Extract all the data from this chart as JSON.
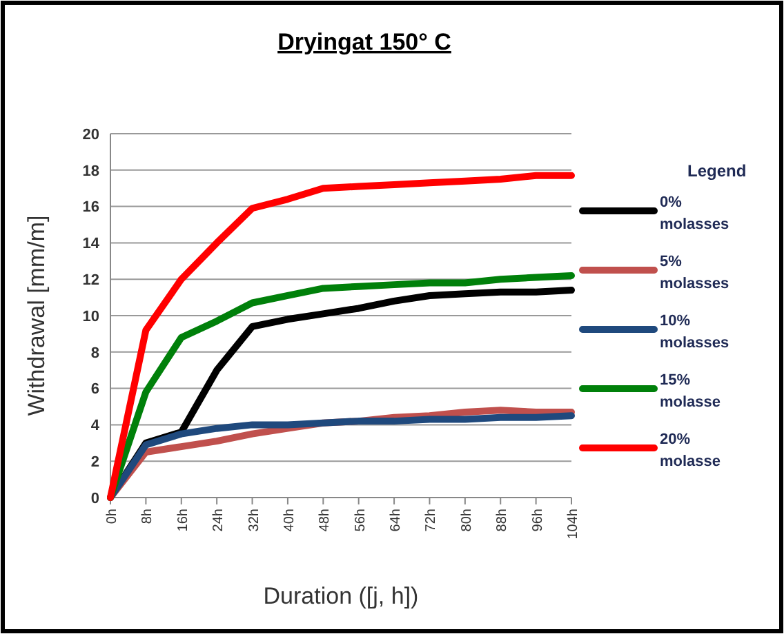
{
  "chart_data": {
    "type": "line",
    "title": "Dryingat 150° C",
    "xlabel": "Duration ([j, h])",
    "ylabel": "Withdrawal [mm/m]",
    "legend_title": "Legend",
    "categories": [
      "0h",
      "8h",
      "16h",
      "24h",
      "32h",
      "40h",
      "48h",
      "56h",
      "64h",
      "72h",
      "80h",
      "88h",
      "96h",
      "104h"
    ],
    "series": [
      {
        "name": "0% molasses",
        "color": "#000000",
        "values": [
          0,
          3.0,
          3.6,
          7,
          9.4,
          9.8,
          10.1,
          10.4,
          10.8,
          11.1,
          11.2,
          11.3,
          11.3,
          11.4
        ]
      },
      {
        "name": "5% molasses",
        "color": "#c0504d",
        "values": [
          0,
          2.5,
          2.8,
          3.1,
          3.5,
          3.8,
          4.1,
          4.2,
          4.4,
          4.5,
          4.7,
          4.8,
          4.7,
          4.7
        ]
      },
      {
        "name": "10% molasses",
        "color": "#1f497d",
        "values": [
          0,
          2.9,
          3.5,
          3.8,
          4.0,
          4.0,
          4.1,
          4.2,
          4.2,
          4.3,
          4.3,
          4.4,
          4.4,
          4.5
        ]
      },
      {
        "name": "15% molasse",
        "color": "#00800a",
        "values": [
          0,
          5.8,
          8.8,
          9.7,
          10.7,
          11.1,
          11.5,
          11.6,
          11.7,
          11.8,
          11.8,
          12.0,
          12.1,
          12.2
        ]
      },
      {
        "name": "20% molasse",
        "color": "#ff0000",
        "values": [
          0,
          9.2,
          12,
          14,
          15.9,
          16.4,
          17,
          17.1,
          17.2,
          17.3,
          17.4,
          17.5,
          17.7,
          17.7
        ]
      }
    ],
    "ylim": [
      0,
      20
    ],
    "yticks": [
      0,
      2,
      4,
      6,
      8,
      10,
      12,
      14,
      16,
      18,
      20
    ],
    "grid": "y",
    "legend": "right",
    "marker": "none",
    "line_style": "solid"
  }
}
